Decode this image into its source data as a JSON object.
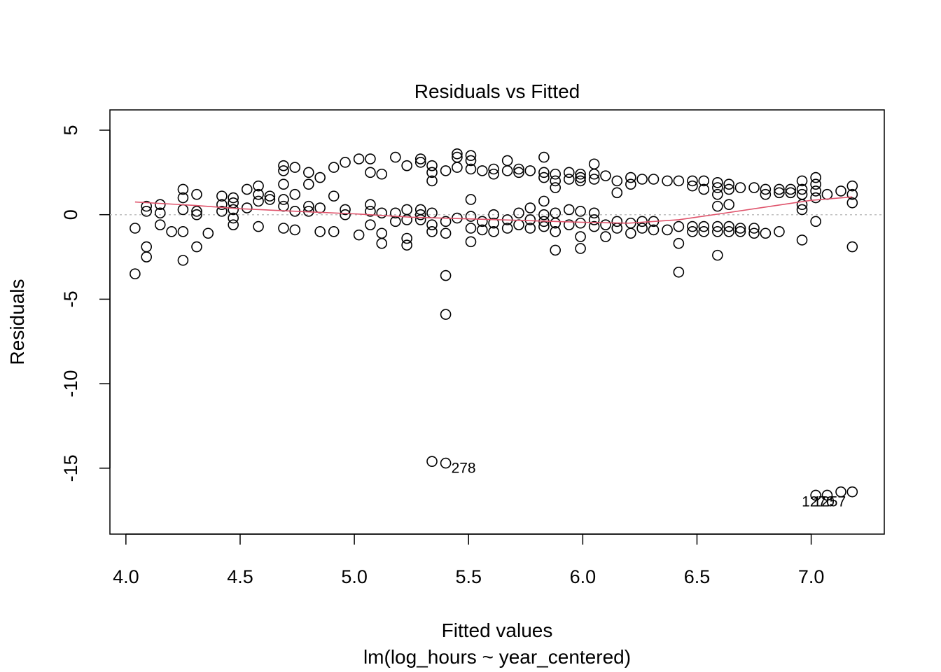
{
  "chart_data": {
    "type": "scatter",
    "title": "Residuals vs Fitted",
    "xlabel": "Fitted values",
    "xlabel_sub": "lm(log_hours ~ year_centered)",
    "ylabel": "Residuals",
    "xlim": [
      3.93,
      7.32
    ],
    "ylim": [
      -18.9,
      6.2
    ],
    "xticks": [
      4.0,
      4.5,
      5.0,
      5.5,
      6.0,
      6.5,
      7.0
    ],
    "xtick_labels": [
      "4.0",
      "4.5",
      "5.0",
      "5.5",
      "6.0",
      "6.5",
      "7.0"
    ],
    "yticks": [
      5,
      0,
      -5,
      -10,
      -15
    ],
    "ytick_labels": [
      "5",
      "0",
      "-5",
      "-10",
      "-15"
    ],
    "reference_line": 0,
    "grid": false,
    "legend": "none",
    "colors": {
      "points": "#000000",
      "smoother": "#DF536B",
      "reference": "#BEBEBE"
    },
    "points": [
      [
        4.04,
        -0.8
      ],
      [
        4.04,
        -3.5
      ],
      [
        4.09,
        0.5
      ],
      [
        4.09,
        0.2
      ],
      [
        4.09,
        -1.9
      ],
      [
        4.09,
        -2.5
      ],
      [
        4.15,
        0.6
      ],
      [
        4.15,
        0.1
      ],
      [
        4.15,
        -0.6
      ],
      [
        4.2,
        -1.0
      ],
      [
        4.25,
        1.5
      ],
      [
        4.25,
        1.0
      ],
      [
        4.25,
        0.3
      ],
      [
        4.25,
        -1.0
      ],
      [
        4.25,
        -2.7
      ],
      [
        4.31,
        1.2
      ],
      [
        4.31,
        0.2
      ],
      [
        4.31,
        0.0
      ],
      [
        4.31,
        -1.9
      ],
      [
        4.36,
        -1.1
      ],
      [
        4.42,
        1.1
      ],
      [
        4.42,
        0.6
      ],
      [
        4.42,
        0.2
      ],
      [
        4.47,
        1.0
      ],
      [
        4.47,
        0.7
      ],
      [
        4.47,
        0.3
      ],
      [
        4.47,
        -0.2
      ],
      [
        4.47,
        -0.6
      ],
      [
        4.53,
        1.5
      ],
      [
        4.53,
        0.4
      ],
      [
        4.58,
        1.7
      ],
      [
        4.58,
        1.2
      ],
      [
        4.58,
        0.8
      ],
      [
        4.58,
        -0.7
      ],
      [
        4.63,
        1.1
      ],
      [
        4.63,
        0.9
      ],
      [
        4.69,
        2.9
      ],
      [
        4.69,
        2.6
      ],
      [
        4.69,
        1.8
      ],
      [
        4.69,
        0.9
      ],
      [
        4.69,
        0.5
      ],
      [
        4.69,
        -0.8
      ],
      [
        4.74,
        2.8
      ],
      [
        4.74,
        1.2
      ],
      [
        4.74,
        0.2
      ],
      [
        4.74,
        -0.9
      ],
      [
        4.8,
        2.5
      ],
      [
        4.8,
        1.8
      ],
      [
        4.8,
        0.5
      ],
      [
        4.8,
        0.2
      ],
      [
        4.85,
        2.2
      ],
      [
        4.85,
        0.4
      ],
      [
        4.85,
        -1.0
      ],
      [
        4.91,
        2.8
      ],
      [
        4.91,
        1.1
      ],
      [
        4.91,
        -1.0
      ],
      [
        4.96,
        3.1
      ],
      [
        4.96,
        0.3
      ],
      [
        4.96,
        0.0
      ],
      [
        5.02,
        3.3
      ],
      [
        5.02,
        -1.2
      ],
      [
        5.07,
        3.3
      ],
      [
        5.07,
        2.5
      ],
      [
        5.07,
        0.6
      ],
      [
        5.07,
        0.2
      ],
      [
        5.07,
        -0.6
      ],
      [
        5.12,
        2.4
      ],
      [
        5.12,
        0.1
      ],
      [
        5.12,
        -1.1
      ],
      [
        5.12,
        -1.7
      ],
      [
        5.18,
        3.4
      ],
      [
        5.18,
        0.1
      ],
      [
        5.18,
        -0.4
      ],
      [
        5.23,
        2.9
      ],
      [
        5.23,
        0.3
      ],
      [
        5.23,
        -0.3
      ],
      [
        5.23,
        -1.4
      ],
      [
        5.23,
        -1.8
      ],
      [
        5.29,
        3.3
      ],
      [
        5.29,
        3.1
      ],
      [
        5.29,
        0.3
      ],
      [
        5.29,
        0.0
      ],
      [
        5.29,
        -0.3
      ],
      [
        5.34,
        2.9
      ],
      [
        5.34,
        2.5
      ],
      [
        5.34,
        2.0
      ],
      [
        5.34,
        0.1
      ],
      [
        5.34,
        -0.6
      ],
      [
        5.34,
        -1.0
      ],
      [
        5.34,
        -14.6
      ],
      [
        5.4,
        2.6
      ],
      [
        5.4,
        -0.4
      ],
      [
        5.4,
        -1.1
      ],
      [
        5.4,
        -3.6
      ],
      [
        5.4,
        -5.9
      ],
      [
        5.4,
        -14.7
      ],
      [
        5.45,
        3.6
      ],
      [
        5.45,
        3.4
      ],
      [
        5.45,
        2.8
      ],
      [
        5.45,
        -0.2
      ],
      [
        5.51,
        3.5
      ],
      [
        5.51,
        3.2
      ],
      [
        5.51,
        2.7
      ],
      [
        5.51,
        0.9
      ],
      [
        5.51,
        -0.1
      ],
      [
        5.51,
        -0.8
      ],
      [
        5.51,
        -1.6
      ],
      [
        5.56,
        2.6
      ],
      [
        5.56,
        -0.4
      ],
      [
        5.56,
        -0.9
      ],
      [
        5.61,
        2.7
      ],
      [
        5.61,
        2.4
      ],
      [
        5.61,
        0.0
      ],
      [
        5.61,
        -0.5
      ],
      [
        5.61,
        -1.0
      ],
      [
        5.67,
        3.2
      ],
      [
        5.67,
        2.6
      ],
      [
        5.67,
        -0.3
      ],
      [
        5.67,
        -0.8
      ],
      [
        5.72,
        2.7
      ],
      [
        5.72,
        2.5
      ],
      [
        5.72,
        0.1
      ],
      [
        5.72,
        -0.6
      ],
      [
        5.77,
        2.6
      ],
      [
        5.77,
        0.4
      ],
      [
        5.77,
        -0.3
      ],
      [
        5.77,
        -0.8
      ],
      [
        5.83,
        3.4
      ],
      [
        5.83,
        2.5
      ],
      [
        5.83,
        2.2
      ],
      [
        5.83,
        0.8
      ],
      [
        5.83,
        0.0
      ],
      [
        5.83,
        -0.4
      ],
      [
        5.83,
        -0.7
      ],
      [
        5.88,
        2.4
      ],
      [
        5.88,
        2.0
      ],
      [
        5.88,
        1.6
      ],
      [
        5.88,
        0.1
      ],
      [
        5.88,
        -0.5
      ],
      [
        5.88,
        -1.0
      ],
      [
        5.88,
        -2.1
      ],
      [
        5.94,
        2.5
      ],
      [
        5.94,
        2.1
      ],
      [
        5.94,
        0.3
      ],
      [
        5.94,
        -0.6
      ],
      [
        5.99,
        2.4
      ],
      [
        5.99,
        2.2
      ],
      [
        5.99,
        2.0
      ],
      [
        5.99,
        0.2
      ],
      [
        5.99,
        -0.5
      ],
      [
        5.99,
        -1.3
      ],
      [
        5.99,
        -2.0
      ],
      [
        6.05,
        3.0
      ],
      [
        6.05,
        2.4
      ],
      [
        6.05,
        2.1
      ],
      [
        6.05,
        0.1
      ],
      [
        6.05,
        -0.3
      ],
      [
        6.05,
        -0.7
      ],
      [
        6.1,
        2.3
      ],
      [
        6.1,
        -0.6
      ],
      [
        6.1,
        -1.3
      ],
      [
        6.15,
        2.0
      ],
      [
        6.15,
        1.3
      ],
      [
        6.15,
        -0.4
      ],
      [
        6.15,
        -0.8
      ],
      [
        6.21,
        2.2
      ],
      [
        6.21,
        1.8
      ],
      [
        6.21,
        -0.5
      ],
      [
        6.21,
        -1.1
      ],
      [
        6.26,
        2.1
      ],
      [
        6.26,
        -0.4
      ],
      [
        6.26,
        -0.8
      ],
      [
        6.31,
        2.1
      ],
      [
        6.31,
        -0.4
      ],
      [
        6.31,
        -0.9
      ],
      [
        6.37,
        2.0
      ],
      [
        6.37,
        -0.9
      ],
      [
        6.42,
        2.0
      ],
      [
        6.42,
        -0.7
      ],
      [
        6.42,
        -1.7
      ],
      [
        6.42,
        -3.4
      ],
      [
        6.48,
        2.0
      ],
      [
        6.48,
        1.7
      ],
      [
        6.48,
        -0.7
      ],
      [
        6.48,
        -1.0
      ],
      [
        6.53,
        2.0
      ],
      [
        6.53,
        1.5
      ],
      [
        6.53,
        -0.7
      ],
      [
        6.53,
        -1.0
      ],
      [
        6.59,
        1.9
      ],
      [
        6.59,
        1.6
      ],
      [
        6.59,
        1.2
      ],
      [
        6.59,
        0.5
      ],
      [
        6.59,
        -0.7
      ],
      [
        6.59,
        -1.0
      ],
      [
        6.59,
        -2.4
      ],
      [
        6.64,
        1.8
      ],
      [
        6.64,
        1.5
      ],
      [
        6.64,
        0.6
      ],
      [
        6.64,
        -0.7
      ],
      [
        6.64,
        -1.0
      ],
      [
        6.69,
        1.6
      ],
      [
        6.69,
        -0.8
      ],
      [
        6.69,
        -1.0
      ],
      [
        6.75,
        1.6
      ],
      [
        6.75,
        -0.8
      ],
      [
        6.75,
        -1.1
      ],
      [
        6.8,
        1.5
      ],
      [
        6.8,
        1.2
      ],
      [
        6.8,
        -1.1
      ],
      [
        6.86,
        1.5
      ],
      [
        6.86,
        1.3
      ],
      [
        6.86,
        -1.0
      ],
      [
        6.91,
        1.5
      ],
      [
        6.91,
        1.3
      ],
      [
        6.96,
        2.0
      ],
      [
        6.96,
        1.5
      ],
      [
        6.96,
        1.2
      ],
      [
        6.96,
        0.6
      ],
      [
        6.96,
        0.3
      ],
      [
        6.96,
        -1.5
      ],
      [
        7.02,
        2.2
      ],
      [
        7.02,
        1.8
      ],
      [
        7.02,
        1.4
      ],
      [
        7.02,
        1.0
      ],
      [
        7.02,
        -0.4
      ],
      [
        7.07,
        1.2
      ],
      [
        7.13,
        1.4
      ],
      [
        7.18,
        1.7
      ],
      [
        7.18,
        1.2
      ],
      [
        7.18,
        0.7
      ],
      [
        7.18,
        -1.9
      ],
      [
        7.07,
        -16.6
      ],
      [
        7.13,
        -16.4
      ],
      [
        7.18,
        -16.4
      ],
      [
        7.02,
        -16.6
      ]
    ],
    "smoother": [
      [
        4.04,
        0.75
      ],
      [
        4.3,
        0.55
      ],
      [
        4.5,
        0.35
      ],
      [
        4.75,
        0.2
      ],
      [
        5.0,
        0.05
      ],
      [
        5.25,
        -0.15
      ],
      [
        5.5,
        -0.25
      ],
      [
        5.75,
        -0.35
      ],
      [
        6.0,
        -0.45
      ],
      [
        6.2,
        -0.5
      ],
      [
        6.42,
        -0.3
      ],
      [
        6.6,
        0.05
      ],
      [
        6.8,
        0.45
      ],
      [
        7.0,
        0.85
      ],
      [
        7.18,
        1.05
      ]
    ],
    "annotations": [
      {
        "text": "278",
        "x": 5.4,
        "y": -14.7
      },
      {
        "text": "1270",
        "x": 7.02,
        "y": -16.6
      },
      {
        "text": "1257",
        "x": 7.07,
        "y": -16.6
      }
    ]
  }
}
